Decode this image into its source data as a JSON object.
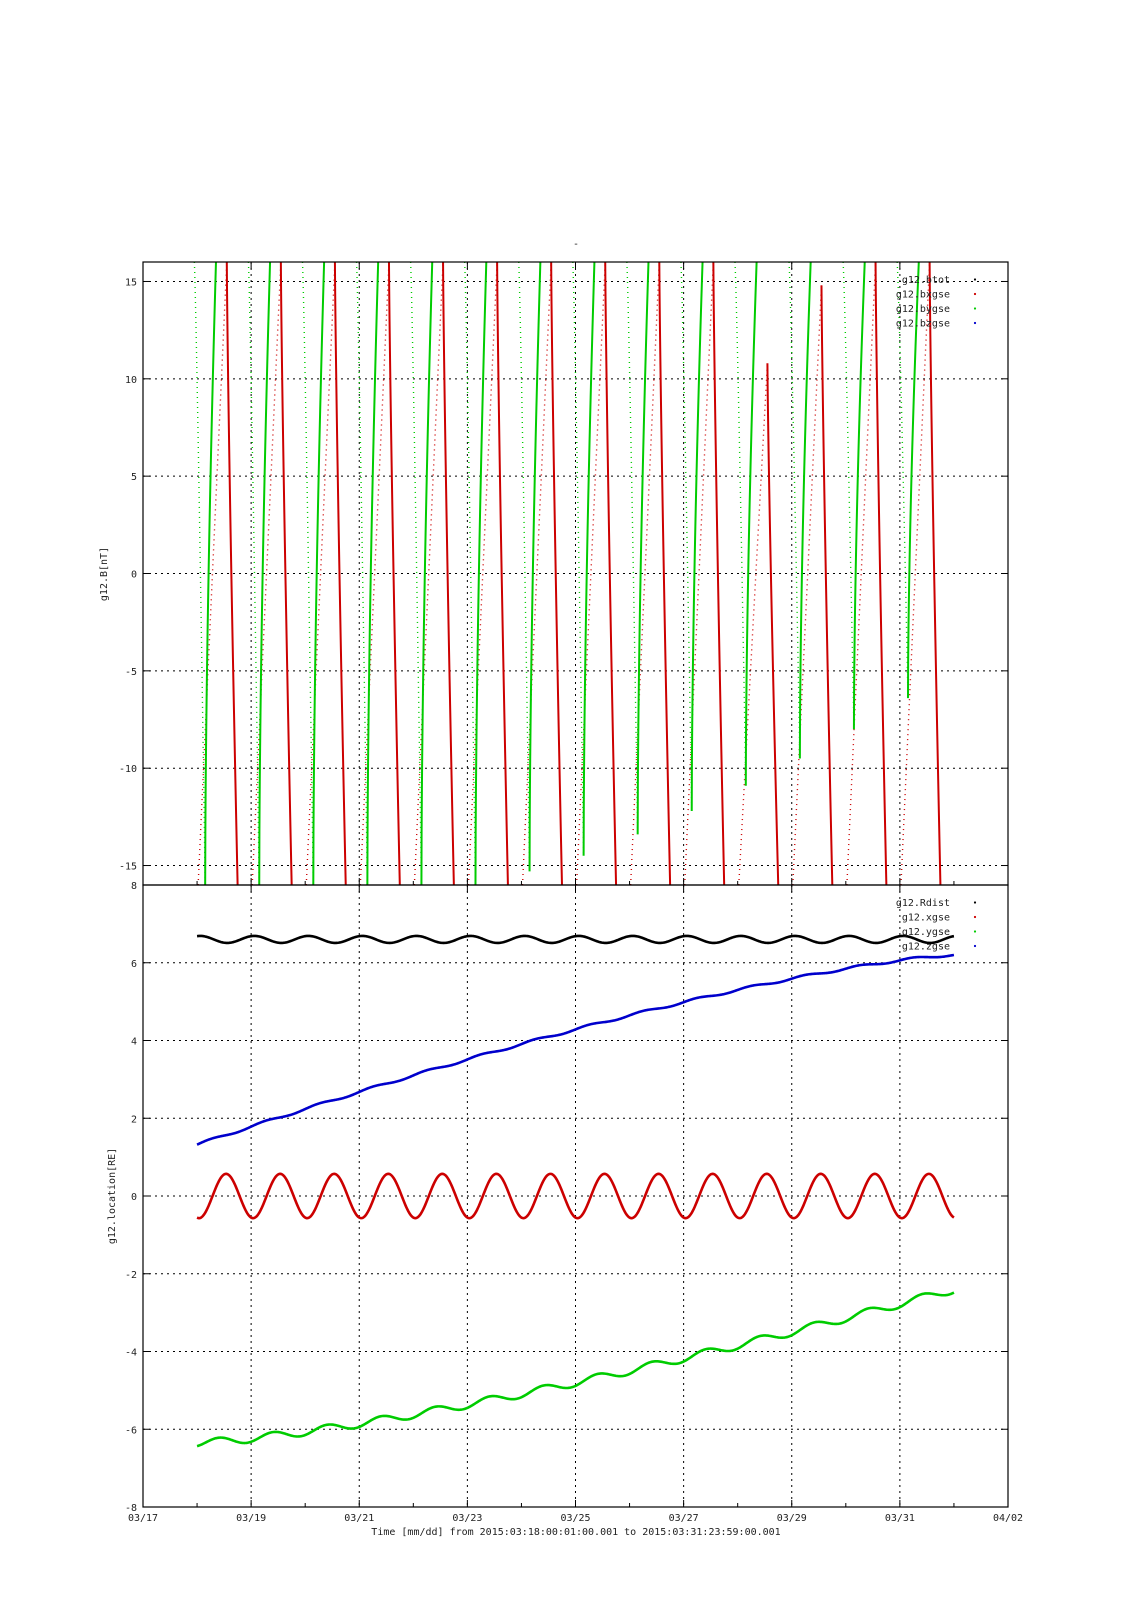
{
  "title": "-",
  "x_axis": {
    "label": "Time [mm/dd]  from 2015:03:18:00:01:00.001  to  2015:03:31:23:59:00.001",
    "range_days": [
      0,
      16
    ],
    "ticks": [
      {
        "day": 0,
        "label": "03/17"
      },
      {
        "day": 2,
        "label": "03/19"
      },
      {
        "day": 4,
        "label": "03/21"
      },
      {
        "day": 6,
        "label": "03/23"
      },
      {
        "day": 8,
        "label": "03/25"
      },
      {
        "day": 10,
        "label": "03/27"
      },
      {
        "day": 12,
        "label": "03/29"
      },
      {
        "day": 14,
        "label": "03/31"
      },
      {
        "day": 16,
        "label": "04/02"
      }
    ]
  },
  "chart_data": [
    {
      "type": "line",
      "ylabel": "g12.B[nT]",
      "ylim": [
        -16,
        16
      ],
      "yticks": [
        -15,
        -10,
        -5,
        0,
        5,
        10,
        15
      ],
      "grid": true,
      "legend_position": "top-right",
      "series": [
        {
          "name": "g12.btot",
          "color": "#000000",
          "values": []
        },
        {
          "name": "g12.bxgse",
          "color": "#cc0000",
          "cycle_min": [
            -16,
            -16,
            -16,
            -16,
            -16,
            -16,
            -16,
            -16,
            -16,
            -16,
            -16,
            -16,
            -16,
            -16
          ],
          "cycle_max": [
            16,
            16,
            16,
            16,
            16,
            16,
            16,
            16,
            16,
            16,
            10.8,
            14.8,
            16,
            16
          ]
        },
        {
          "name": "g12.bygse",
          "color": "#00cc00",
          "cycle_min": [
            -16,
            -16,
            -16,
            -16,
            -16,
            -16,
            -15.3,
            -14.5,
            -13.4,
            -12.2,
            -10.9,
            -9.5,
            -8,
            -6.4
          ],
          "cycle_max": [
            16,
            16,
            16,
            16,
            16,
            16,
            16,
            16,
            16,
            16,
            16,
            16,
            16,
            16
          ]
        },
        {
          "name": "g12.bzgse",
          "color": "#0000cc",
          "values": []
        }
      ]
    },
    {
      "type": "line",
      "ylabel": "g12.location[RE]",
      "ylim": [
        -8,
        8
      ],
      "yticks": [
        -8,
        -6,
        -4,
        -2,
        0,
        2,
        4,
        6,
        8
      ],
      "grid": true,
      "legend_position": "top-right",
      "x_start_day": 1.0,
      "x_end_day": 15.0,
      "series": [
        {
          "name": "g12.Rdist",
          "color": "#000000",
          "mean": 6.6,
          "amplitude": 0.09
        },
        {
          "name": "g12.xgse",
          "color": "#cc0000",
          "mean": 0.0,
          "amplitude": 0.57
        },
        {
          "name": "g12.ygse",
          "color": "#00cc00",
          "start": -6.35,
          "end": -2.4,
          "amplitude": 0.1
        },
        {
          "name": "g12.zgse",
          "color": "#0000cc",
          "start": 1.32,
          "end": 6.2,
          "amplitude": 0.03
        }
      ]
    }
  ]
}
